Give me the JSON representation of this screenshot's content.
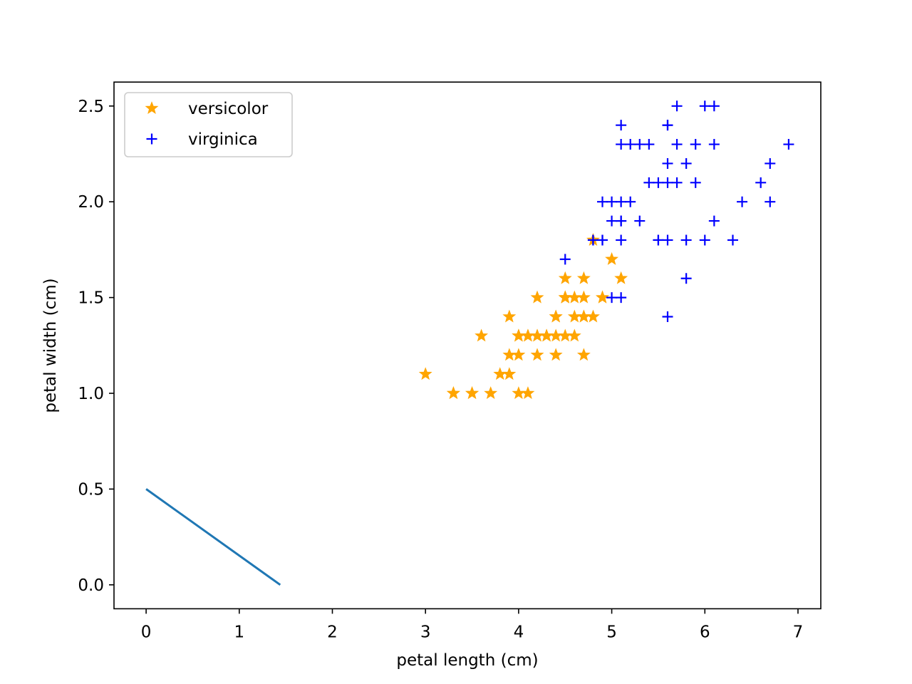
{
  "chart_data": {
    "type": "scatter",
    "title": "",
    "xlabel": "petal length (cm)",
    "ylabel": "petal width (cm)",
    "xlim": [
      -0.345,
      7.245
    ],
    "ylim": [
      -0.125,
      2.625
    ],
    "xticks": [
      0,
      1,
      2,
      3,
      4,
      5,
      6,
      7
    ],
    "xtick_labels": [
      "0",
      "1",
      "2",
      "3",
      "4",
      "5",
      "6",
      "7"
    ],
    "yticks": [
      0.0,
      0.5,
      1.0,
      1.5,
      2.0,
      2.5
    ],
    "ytick_labels": [
      "0.0",
      "0.5",
      "1.0",
      "1.5",
      "2.0",
      "2.5"
    ],
    "grid": false,
    "legend_position": "upper-left",
    "series": [
      {
        "name": "versicolor",
        "marker": "star",
        "color": "#ffa500",
        "points": [
          [
            4.7,
            1.4
          ],
          [
            4.5,
            1.5
          ],
          [
            4.9,
            1.5
          ],
          [
            4.0,
            1.3
          ],
          [
            4.6,
            1.5
          ],
          [
            4.5,
            1.3
          ],
          [
            4.7,
            1.6
          ],
          [
            3.3,
            1.0
          ],
          [
            4.6,
            1.3
          ],
          [
            3.9,
            1.4
          ],
          [
            3.5,
            1.0
          ],
          [
            4.2,
            1.5
          ],
          [
            4.0,
            1.0
          ],
          [
            4.7,
            1.4
          ],
          [
            3.6,
            1.3
          ],
          [
            4.4,
            1.4
          ],
          [
            4.5,
            1.5
          ],
          [
            4.1,
            1.0
          ],
          [
            4.5,
            1.5
          ],
          [
            3.9,
            1.1
          ],
          [
            4.8,
            1.8
          ],
          [
            4.0,
            1.3
          ],
          [
            4.9,
            1.5
          ],
          [
            4.7,
            1.2
          ],
          [
            4.3,
            1.3
          ],
          [
            4.4,
            1.4
          ],
          [
            4.8,
            1.4
          ],
          [
            5.0,
            1.7
          ],
          [
            4.5,
            1.5
          ],
          [
            3.5,
            1.0
          ],
          [
            3.8,
            1.1
          ],
          [
            3.7,
            1.0
          ],
          [
            3.9,
            1.2
          ],
          [
            5.1,
            1.6
          ],
          [
            4.5,
            1.5
          ],
          [
            4.5,
            1.6
          ],
          [
            4.7,
            1.5
          ],
          [
            4.4,
            1.3
          ],
          [
            4.1,
            1.3
          ],
          [
            4.0,
            1.3
          ],
          [
            4.4,
            1.2
          ],
          [
            4.6,
            1.4
          ],
          [
            4.0,
            1.2
          ],
          [
            3.3,
            1.0
          ],
          [
            4.2,
            1.3
          ],
          [
            4.2,
            1.2
          ],
          [
            4.2,
            1.3
          ],
          [
            4.3,
            1.3
          ],
          [
            3.0,
            1.1
          ],
          [
            4.1,
            1.3
          ]
        ]
      },
      {
        "name": "virginica",
        "marker": "plus",
        "color": "#0000ff",
        "points": [
          [
            6.0,
            2.5
          ],
          [
            5.1,
            1.9
          ],
          [
            5.9,
            2.1
          ],
          [
            5.6,
            1.8
          ],
          [
            5.8,
            2.2
          ],
          [
            6.6,
            2.1
          ],
          [
            4.5,
            1.7
          ],
          [
            6.3,
            1.8
          ],
          [
            5.8,
            1.8
          ],
          [
            6.1,
            2.5
          ],
          [
            5.1,
            2.0
          ],
          [
            5.3,
            1.9
          ],
          [
            5.5,
            2.1
          ],
          [
            5.0,
            2.0
          ],
          [
            5.1,
            2.4
          ],
          [
            5.3,
            2.3
          ],
          [
            5.5,
            1.8
          ],
          [
            6.7,
            2.2
          ],
          [
            6.9,
            2.3
          ],
          [
            5.0,
            1.5
          ],
          [
            5.7,
            2.3
          ],
          [
            4.9,
            2.0
          ],
          [
            6.7,
            2.0
          ],
          [
            4.9,
            1.8
          ],
          [
            5.7,
            2.1
          ],
          [
            6.0,
            1.8
          ],
          [
            4.8,
            1.8
          ],
          [
            4.9,
            1.8
          ],
          [
            5.6,
            2.1
          ],
          [
            5.8,
            1.6
          ],
          [
            6.1,
            1.9
          ],
          [
            6.4,
            2.0
          ],
          [
            5.6,
            2.2
          ],
          [
            5.1,
            1.5
          ],
          [
            5.6,
            1.4
          ],
          [
            6.1,
            2.3
          ],
          [
            5.6,
            2.4
          ],
          [
            5.5,
            1.8
          ],
          [
            4.8,
            1.8
          ],
          [
            5.4,
            2.1
          ],
          [
            5.6,
            2.4
          ],
          [
            5.1,
            2.3
          ],
          [
            5.1,
            1.9
          ],
          [
            5.9,
            2.3
          ],
          [
            5.7,
            2.5
          ],
          [
            5.2,
            2.3
          ],
          [
            5.0,
            1.9
          ],
          [
            5.2,
            2.0
          ],
          [
            5.4,
            2.3
          ],
          [
            5.1,
            1.8
          ]
        ]
      },
      {
        "name": "",
        "marker": "line",
        "color": "#1f77b4",
        "points": [
          [
            0.0,
            0.5
          ],
          [
            1.44,
            0.0
          ]
        ]
      }
    ]
  }
}
